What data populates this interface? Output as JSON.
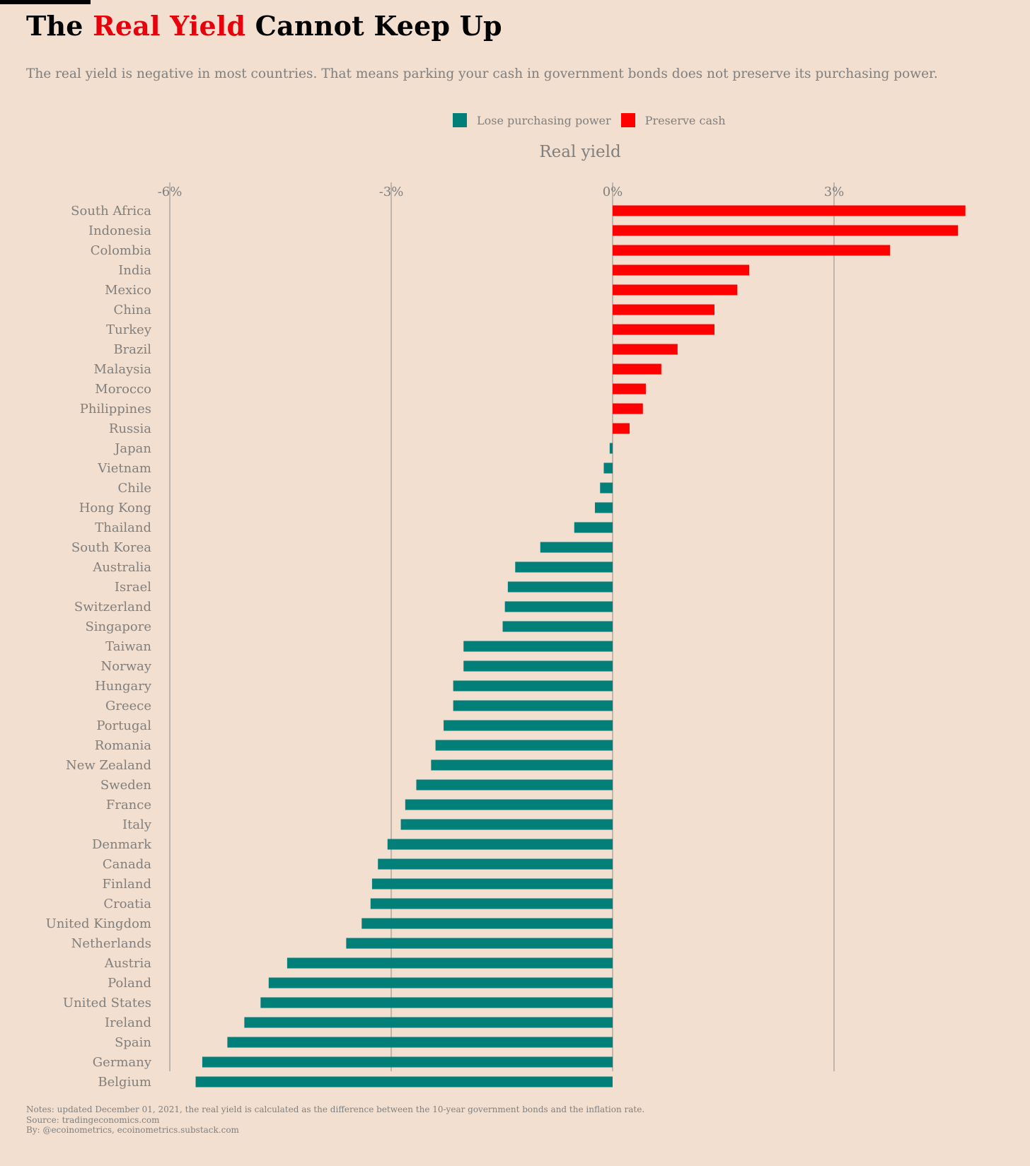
{
  "header": {
    "title_pre": "The ",
    "title_highlight": "Real Yield",
    "title_post": " Cannot Keep Up",
    "subtitle": "The real yield is negative in most countries. That means parking your cash in government bonds does not preserve its purchasing power."
  },
  "legend": {
    "lose_label": "Lose purchasing power",
    "preserve_label": "Preserve cash"
  },
  "colors": {
    "background": "#f2dfd0",
    "lose": "#037f7a",
    "preserve": "#ff0000",
    "title_highlight": "#e8000b",
    "text": "#7f7f7f",
    "grid": "#8c8c8c"
  },
  "chart_data": {
    "type": "bar",
    "orientation": "horizontal",
    "title": "Real yield",
    "xlabel": "Real yield",
    "x_ticks": [
      -6,
      -3,
      0,
      3
    ],
    "x_tick_labels": [
      "-6%",
      "-3%",
      "0%",
      "3%"
    ],
    "x_unit": "%",
    "xlim": [
      -6,
      4.9
    ],
    "grid": "vertical",
    "legend_position": "top-center",
    "categories": [
      "South Africa",
      "Indonesia",
      "Colombia",
      "India",
      "Mexico",
      "China",
      "Turkey",
      "Brazil",
      "Malaysia",
      "Morocco",
      "Philippines",
      "Russia",
      "Japan",
      "Vietnam",
      "Chile",
      "Hong Kong",
      "Thailand",
      "South Korea",
      "Australia",
      "Israel",
      "Switzerland",
      "Singapore",
      "Taiwan",
      "Norway",
      "Hungary",
      "Greece",
      "Portugal",
      "Romania",
      "New Zealand",
      "Sweden",
      "France",
      "Italy",
      "Denmark",
      "Canada",
      "Finland",
      "Croatia",
      "United Kingdom",
      "Netherlands",
      "Austria",
      "Poland",
      "United States",
      "Ireland",
      "Spain",
      "Germany",
      "Belgium"
    ],
    "values": [
      4.78,
      4.68,
      3.76,
      1.85,
      1.69,
      1.38,
      1.38,
      0.88,
      0.66,
      0.45,
      0.41,
      0.23,
      -0.04,
      -0.12,
      -0.17,
      -0.24,
      -0.52,
      -0.98,
      -1.32,
      -1.42,
      -1.46,
      -1.49,
      -2.02,
      -2.02,
      -2.16,
      -2.16,
      -2.29,
      -2.4,
      -2.46,
      -2.66,
      -2.81,
      -2.87,
      -3.05,
      -3.18,
      -3.26,
      -3.28,
      -3.4,
      -3.61,
      -4.41,
      -4.66,
      -4.77,
      -4.99,
      -5.22,
      -5.56,
      -5.65
    ],
    "series": [
      {
        "name": "Lose purchasing power",
        "color": "#037f7a",
        "rule": "value < 0"
      },
      {
        "name": "Preserve cash",
        "color": "#ff0000",
        "rule": "value >= 0"
      }
    ]
  },
  "notes": {
    "line1": "Notes: updated December 01, 2021, the real yield is calculated as the difference between the 10-year government bonds and the inflation rate.",
    "line2": "Source: tradingeconomics.com",
    "line3": "By: @ecoinometrics, ecoinometrics.substack.com"
  }
}
